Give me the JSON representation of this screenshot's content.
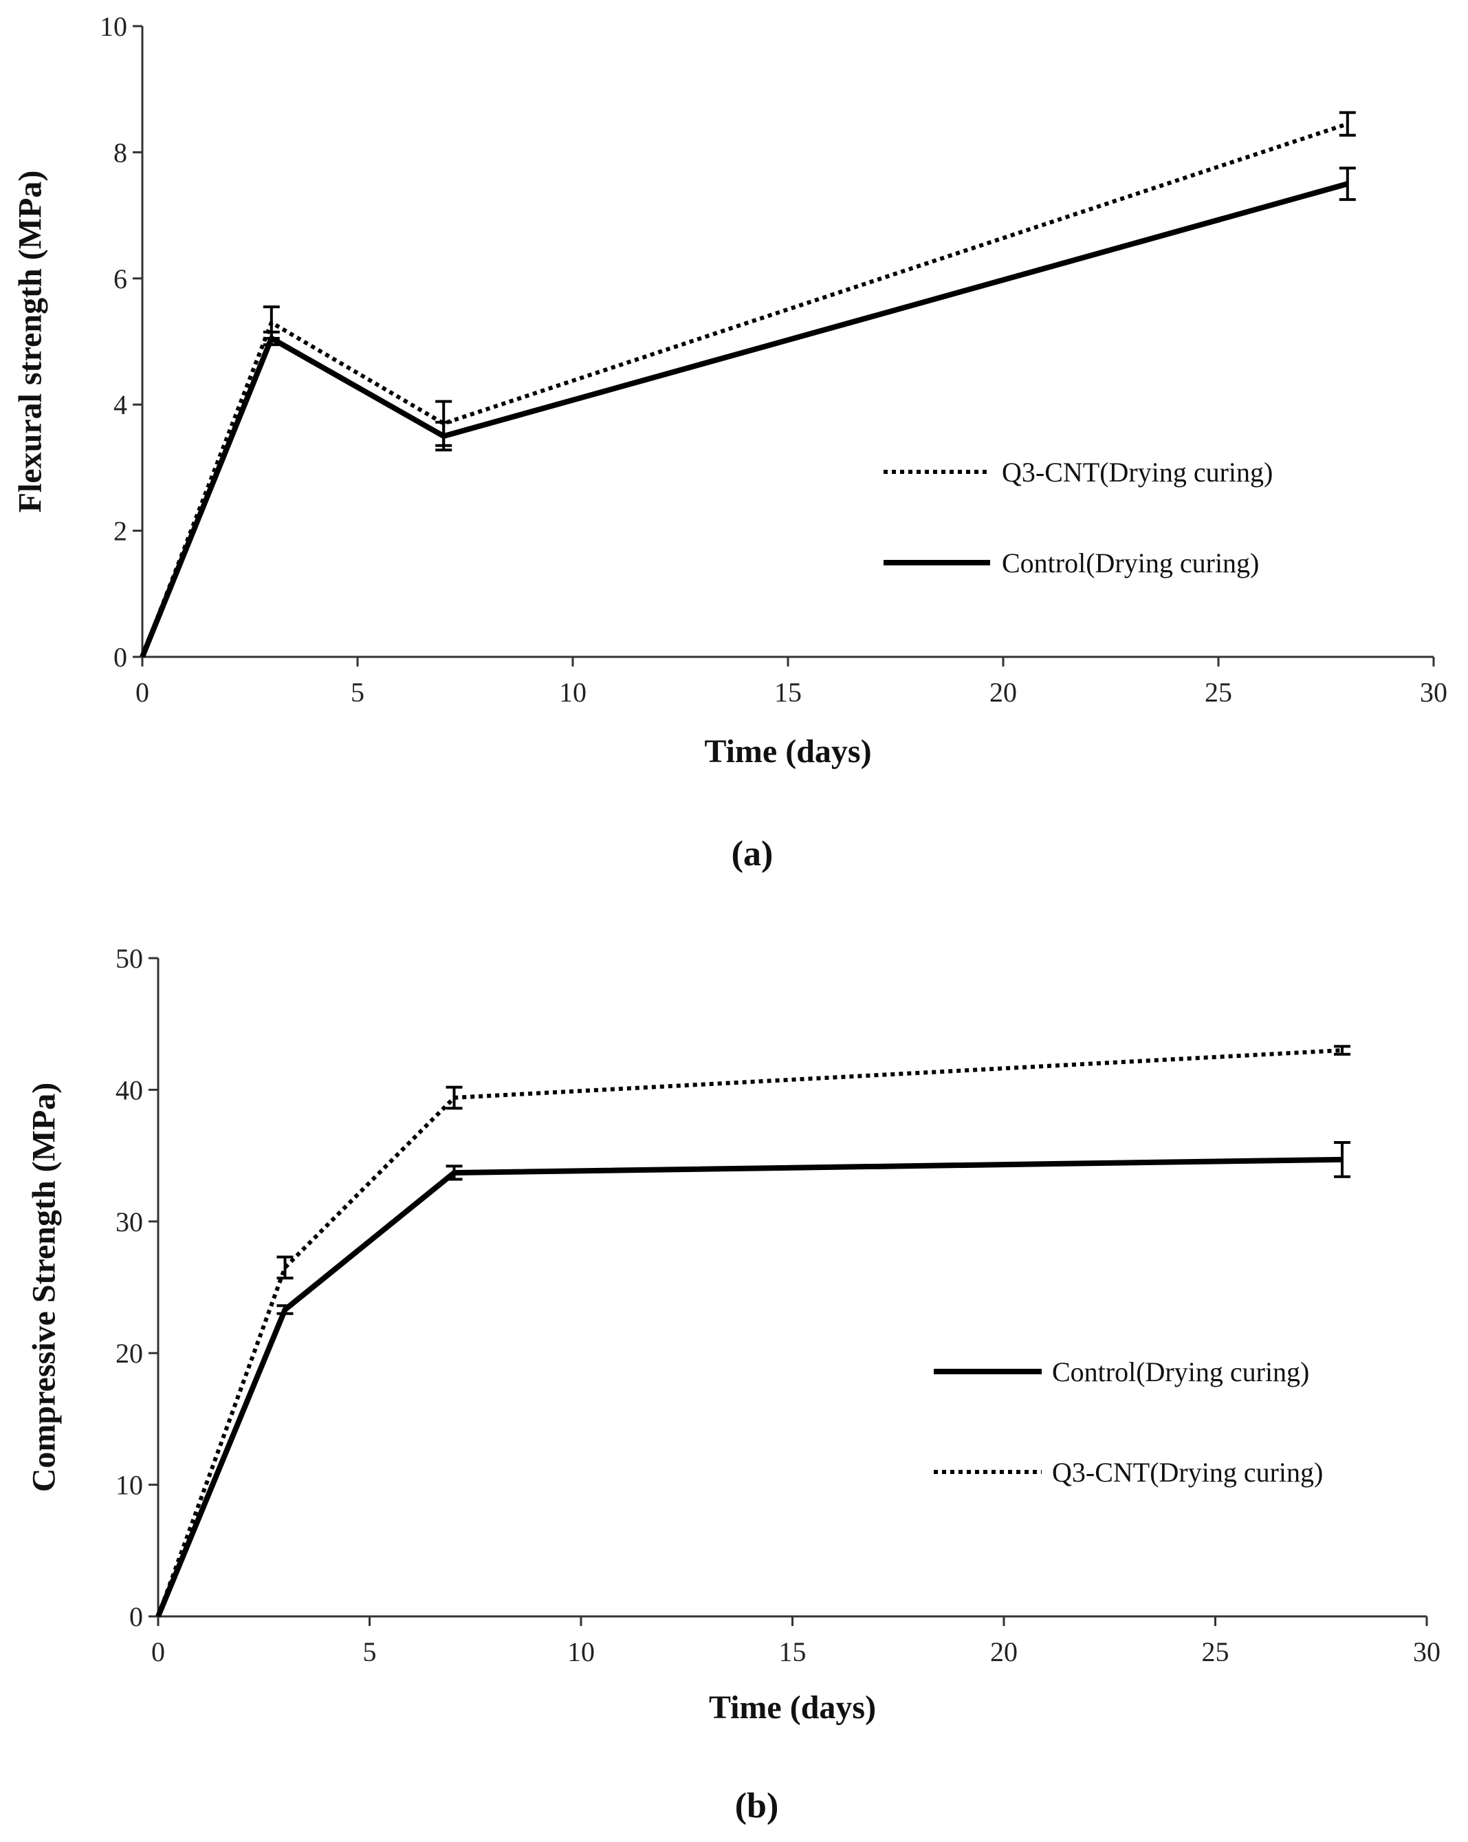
{
  "chart_data": [
    {
      "type": "line",
      "panel_label": "(a)",
      "xlabel": "Time (days)",
      "ylabel": "Flexural strength (MPa)",
      "xlim": [
        0,
        30
      ],
      "ylim": [
        0,
        10
      ],
      "xticks": [
        0,
        5,
        10,
        15,
        20,
        25,
        30
      ],
      "yticks": [
        0,
        2,
        4,
        6,
        8,
        10
      ],
      "x": [
        0,
        3,
        7,
        28
      ],
      "grid": false,
      "legend_position": "right",
      "series": [
        {
          "name": "Q3-CNT(Drying curing)",
          "style": "dotted",
          "values": [
            0,
            5.3,
            3.7,
            8.45
          ],
          "errors": [
            0,
            0.25,
            0.35,
            0.18
          ]
        },
        {
          "name": "Control(Drying curing)",
          "style": "solid",
          "values": [
            0,
            5.05,
            3.5,
            7.5
          ],
          "errors": [
            0,
            0.1,
            0.22,
            0.25
          ]
        }
      ]
    },
    {
      "type": "line",
      "panel_label": "(b)",
      "xlabel": "Time (days)",
      "ylabel": "Compressive Strength (MPa)",
      "xlim": [
        0,
        30
      ],
      "ylim": [
        0,
        50
      ],
      "xticks": [
        0,
        5,
        10,
        15,
        20,
        25,
        30
      ],
      "yticks": [
        0,
        10,
        20,
        30,
        40,
        50
      ],
      "x": [
        0,
        3,
        7,
        28
      ],
      "grid": false,
      "legend_position": "right",
      "series": [
        {
          "name": "Control(Drying curing)",
          "style": "solid",
          "values": [
            0,
            23.3,
            33.7,
            34.7
          ],
          "errors": [
            0,
            0.3,
            0.5,
            1.3
          ]
        },
        {
          "name": "Q3-CNT(Drying curing)",
          "style": "dotted",
          "values": [
            0,
            26.5,
            39.4,
            43.0
          ],
          "errors": [
            0,
            0.8,
            0.8,
            0.3
          ]
        }
      ]
    }
  ],
  "colors": {
    "line": "#000000",
    "axis": "#333333"
  }
}
